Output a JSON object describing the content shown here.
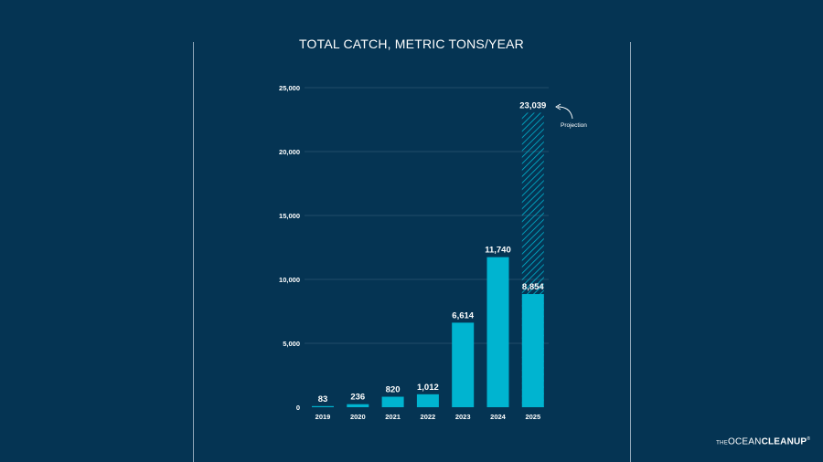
{
  "title": "TOTAL CATCH, METRIC TONS/YEAR",
  "logo": {
    "the": "THE",
    "ocean": "OCEAN",
    "cleanup": "CLEANUP",
    "mark": "®"
  },
  "colors": {
    "background": "#053453",
    "bar": "#00b4d0",
    "projection": "#00b4d0",
    "text": "#ffffff",
    "grid": "#2b5572"
  },
  "chart_data": {
    "type": "bar",
    "title": "TOTAL CATCH, METRIC TONS/YEAR",
    "categories": [
      "2019",
      "2020",
      "2021",
      "2022",
      "2023",
      "2024",
      "2025"
    ],
    "values": [
      83,
      236,
      820,
      1012,
      6614,
      11740,
      8854
    ],
    "value_labels": [
      "83",
      "236",
      "820",
      "1,012",
      "6,614",
      "11,740",
      "8,854"
    ],
    "projection": {
      "category": "2025",
      "value": 23039,
      "value_label": "23,039",
      "annotation": "Projection"
    },
    "ylim": [
      0,
      25000
    ],
    "yticks": [
      0,
      5000,
      10000,
      15000,
      20000,
      25000
    ],
    "ytick_labels": [
      "0",
      "5,000",
      "10,000",
      "15,000",
      "20,000",
      "25,000"
    ],
    "grid": true,
    "xlabel": "",
    "ylabel": ""
  }
}
